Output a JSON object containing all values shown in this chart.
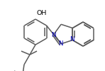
{
  "bg_color": "#ffffff",
  "line_color": "#5a5a5a",
  "text_color": "#000000",
  "blue_color": "#0000bb",
  "figsize": [
    1.48,
    1.0
  ],
  "dpi": 100,
  "lw": 1.1,
  "font_size": 6.2,
  "oh_font_size": 6.8,
  "n_font_size": 6.2,
  "xlim": [
    0,
    148
  ],
  "ylim": [
    0,
    100
  ]
}
